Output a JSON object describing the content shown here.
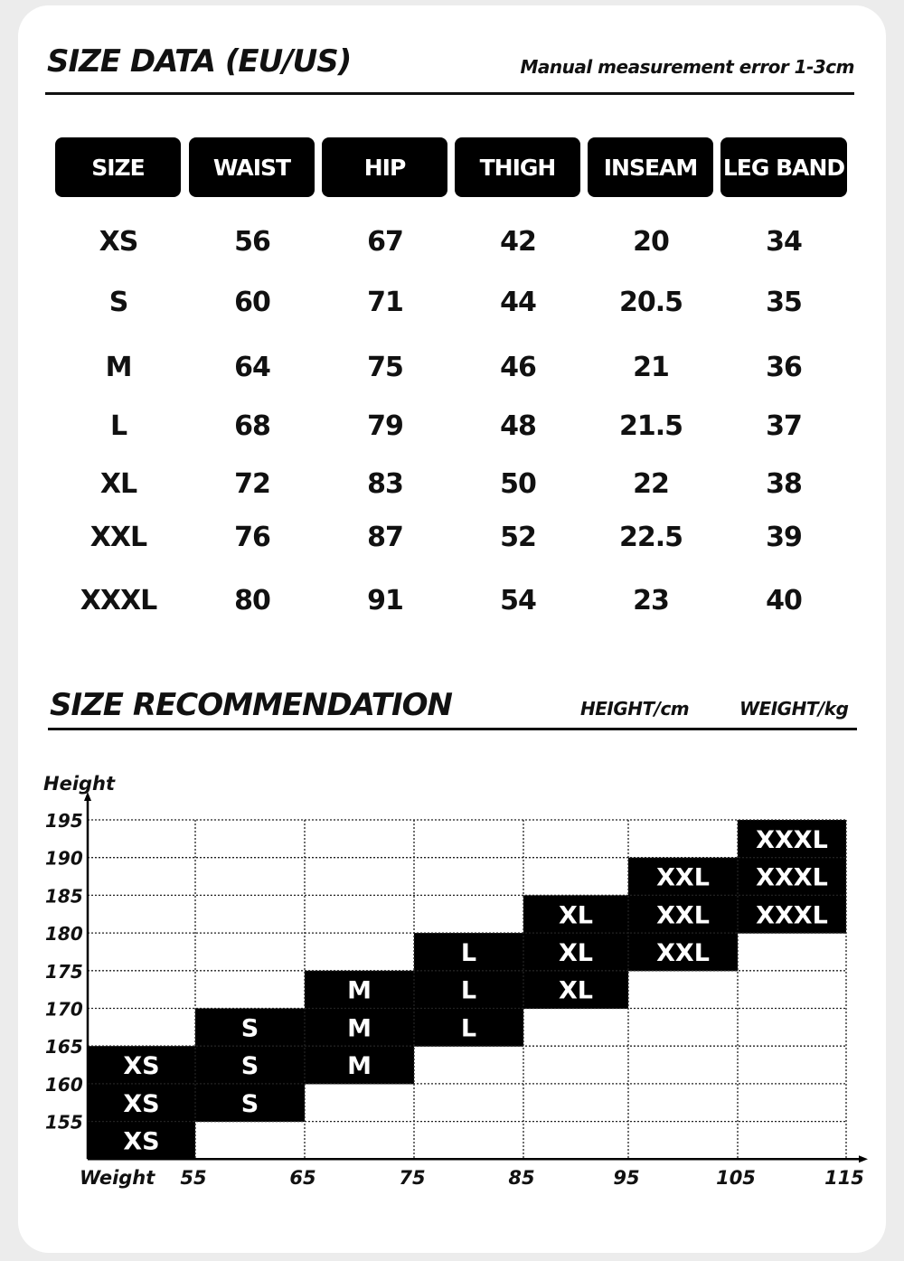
{
  "size_data": {
    "title": "SIZE DATA (EU/US)",
    "note": "Manual measurement error 1-3cm",
    "headers": [
      "SIZE",
      "WAIST",
      "HIP",
      "THIGH",
      "INSEAM",
      "LEG BAND"
    ],
    "rows": [
      [
        "XS",
        "56",
        "67",
        "42",
        "20",
        "34"
      ],
      [
        "S",
        "60",
        "71",
        "44",
        "20.5",
        "35"
      ],
      [
        "M",
        "64",
        "75",
        "46",
        "21",
        "36"
      ],
      [
        "L",
        "68",
        "79",
        "48",
        "21.5",
        "37"
      ],
      [
        "XL",
        "72",
        "83",
        "50",
        "22",
        "38"
      ],
      [
        "XXL",
        "76",
        "87",
        "52",
        "22.5",
        "39"
      ],
      [
        "XXXL",
        "80",
        "91",
        "54",
        "23",
        "40"
      ]
    ]
  },
  "recommendation": {
    "title": "SIZE RECOMMENDATION",
    "height_unit": "HEIGHT/cm",
    "weight_unit": "WEIGHT/kg"
  },
  "chart_data": {
    "type": "heatmap",
    "ylabel": "Height",
    "xlabel": "Weight",
    "x_ticks": [
      "55",
      "65",
      "75",
      "85",
      "95",
      "105",
      "115"
    ],
    "y_ticks": [
      "195",
      "190",
      "185",
      "180",
      "175",
      "170",
      "165",
      "160",
      "155"
    ],
    "grid": true,
    "cell_color": "#000000",
    "cells": [
      {
        "size": "XS",
        "weight": "<55",
        "height": "160-165"
      },
      {
        "size": "XS",
        "weight": "<55",
        "height": "155-160"
      },
      {
        "size": "XS",
        "weight": "<55",
        "height": "<155"
      },
      {
        "size": "S",
        "weight": "55-65",
        "height": "165-170"
      },
      {
        "size": "S",
        "weight": "55-65",
        "height": "160-165"
      },
      {
        "size": "S",
        "weight": "55-65",
        "height": "155-160"
      },
      {
        "size": "M",
        "weight": "65-75",
        "height": "170-175"
      },
      {
        "size": "M",
        "weight": "65-75",
        "height": "165-170"
      },
      {
        "size": "M",
        "weight": "65-75",
        "height": "160-165"
      },
      {
        "size": "L",
        "weight": "75-85",
        "height": "175-180"
      },
      {
        "size": "L",
        "weight": "75-85",
        "height": "170-175"
      },
      {
        "size": "L",
        "weight": "75-85",
        "height": "165-170"
      },
      {
        "size": "XL",
        "weight": "85-95",
        "height": "180-185"
      },
      {
        "size": "XL",
        "weight": "85-95",
        "height": "175-180"
      },
      {
        "size": "XL",
        "weight": "85-95",
        "height": "170-175"
      },
      {
        "size": "XXL",
        "weight": "95-105",
        "height": "185-190"
      },
      {
        "size": "XXL",
        "weight": "95-105",
        "height": "180-185"
      },
      {
        "size": "XXL",
        "weight": "95-105",
        "height": "175-180"
      },
      {
        "size": "XXXL",
        "weight": "105-115",
        "height": "190-195"
      },
      {
        "size": "XXXL",
        "weight": "105-115",
        "height": "185-190"
      },
      {
        "size": "XXXL",
        "weight": "105-115",
        "height": "180-185"
      }
    ]
  }
}
